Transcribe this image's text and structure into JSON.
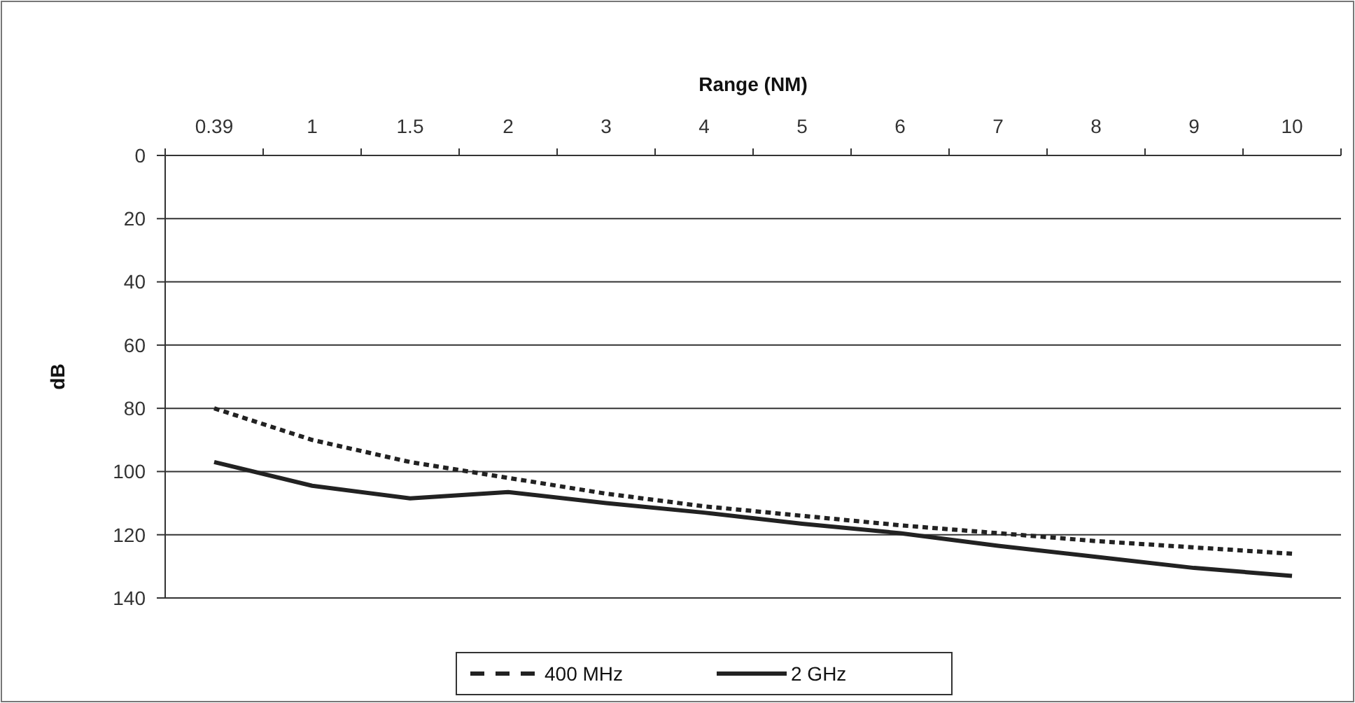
{
  "chart_data": {
    "type": "line",
    "xlabel": "Range (NM)",
    "ylabel": "dB",
    "categories": [
      "0.39",
      "1",
      "1.5",
      "2",
      "3",
      "4",
      "5",
      "6",
      "7",
      "8",
      "9",
      "10"
    ],
    "ylim": [
      140,
      0
    ],
    "yticks": [
      0,
      20,
      40,
      60,
      80,
      100,
      120,
      140
    ],
    "grid": "y",
    "legend": "bottom",
    "marker": "none",
    "series": [
      {
        "name": "400 MHz",
        "color": "#222222",
        "line_style": "dashed",
        "values": [
          80,
          90,
          97,
          102,
          107,
          111,
          114,
          117,
          119.5,
          122,
          124,
          126
        ]
      },
      {
        "name": "2 GHz",
        "color": "#222222",
        "line_style": "solid",
        "values": [
          97,
          104.5,
          108.5,
          106.5,
          110,
          113,
          116.5,
          119.5,
          123.5,
          127,
          130.5,
          133
        ]
      }
    ]
  }
}
